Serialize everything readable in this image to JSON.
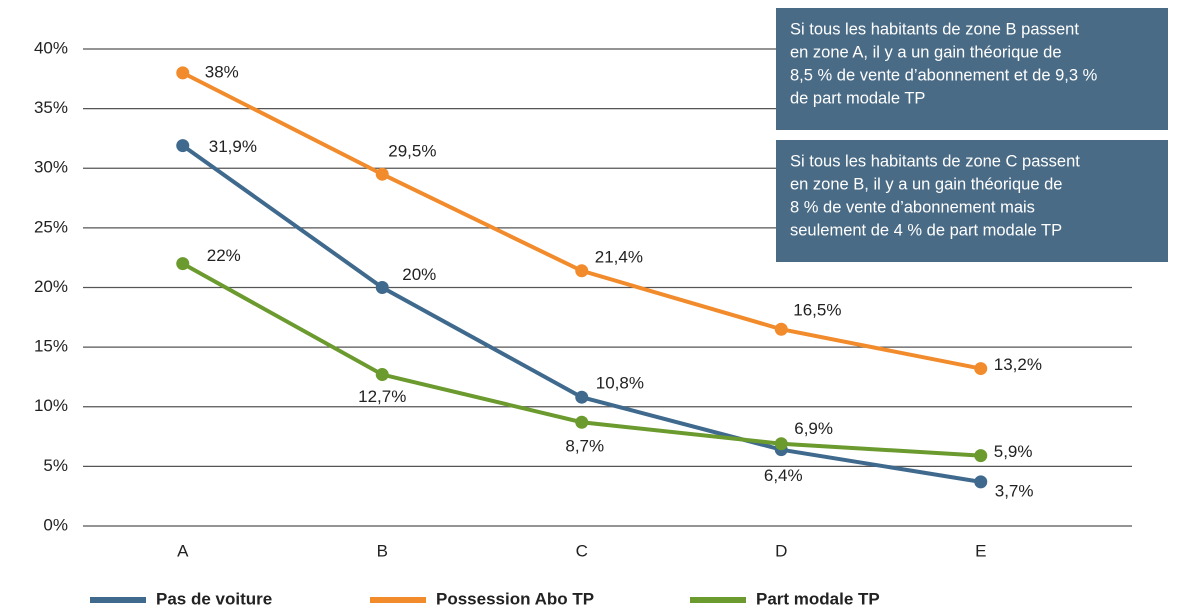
{
  "chart_data": {
    "type": "line",
    "categories": [
      "A",
      "B",
      "C",
      "D",
      "E"
    ],
    "series": [
      {
        "name": "Pas de voiture",
        "color": "#3f6a8d",
        "values": [
          31.9,
          20,
          10.8,
          6.4,
          3.7
        ],
        "value_labels": [
          "31,9%",
          "20%",
          "10,8%",
          "6,4%",
          "3,7%"
        ]
      },
      {
        "name": "Possession Abo TP",
        "color": "#f18b2b",
        "values": [
          38,
          29.5,
          21.4,
          16.5,
          13.2
        ],
        "value_labels": [
          "38%",
          "29,5%",
          "21,4%",
          "16,5%",
          "13,2%"
        ]
      },
      {
        "name": "Part modale TP",
        "color": "#6b9a2e",
        "values": [
          22,
          12.7,
          8.7,
          6.9,
          5.9
        ],
        "value_labels": [
          "22%",
          "12,7%",
          "8,7%",
          "6,9%",
          "5,9%"
        ]
      }
    ],
    "ylim": [
      0,
      40
    ],
    "yticks": [
      {
        "value": 0,
        "label": "0%"
      },
      {
        "value": 5,
        "label": "5%"
      },
      {
        "value": 10,
        "label": "10%"
      },
      {
        "value": 15,
        "label": "15%"
      },
      {
        "value": 20,
        "label": "20%"
      },
      {
        "value": 25,
        "label": "25%"
      },
      {
        "value": 30,
        "label": "30%"
      },
      {
        "value": 35,
        "label": "35%"
      },
      {
        "value": 40,
        "label": "40%"
      }
    ],
    "grid": true,
    "legend": "bottom",
    "annotations": [
      [
        "Si tous les habitants de zone B passent",
        "en zone A, il y a un gain théorique de",
        "8,5 % de vente d’abonnement et de 9,3 %",
        "de part modale TP"
      ],
      [
        "Si tous les habitants de zone C passent",
        "en zone B, il y a un gain théorique de",
        "8 % de vente d’abonnement mais",
        "seulement de 4 % de part modale TP"
      ]
    ]
  }
}
